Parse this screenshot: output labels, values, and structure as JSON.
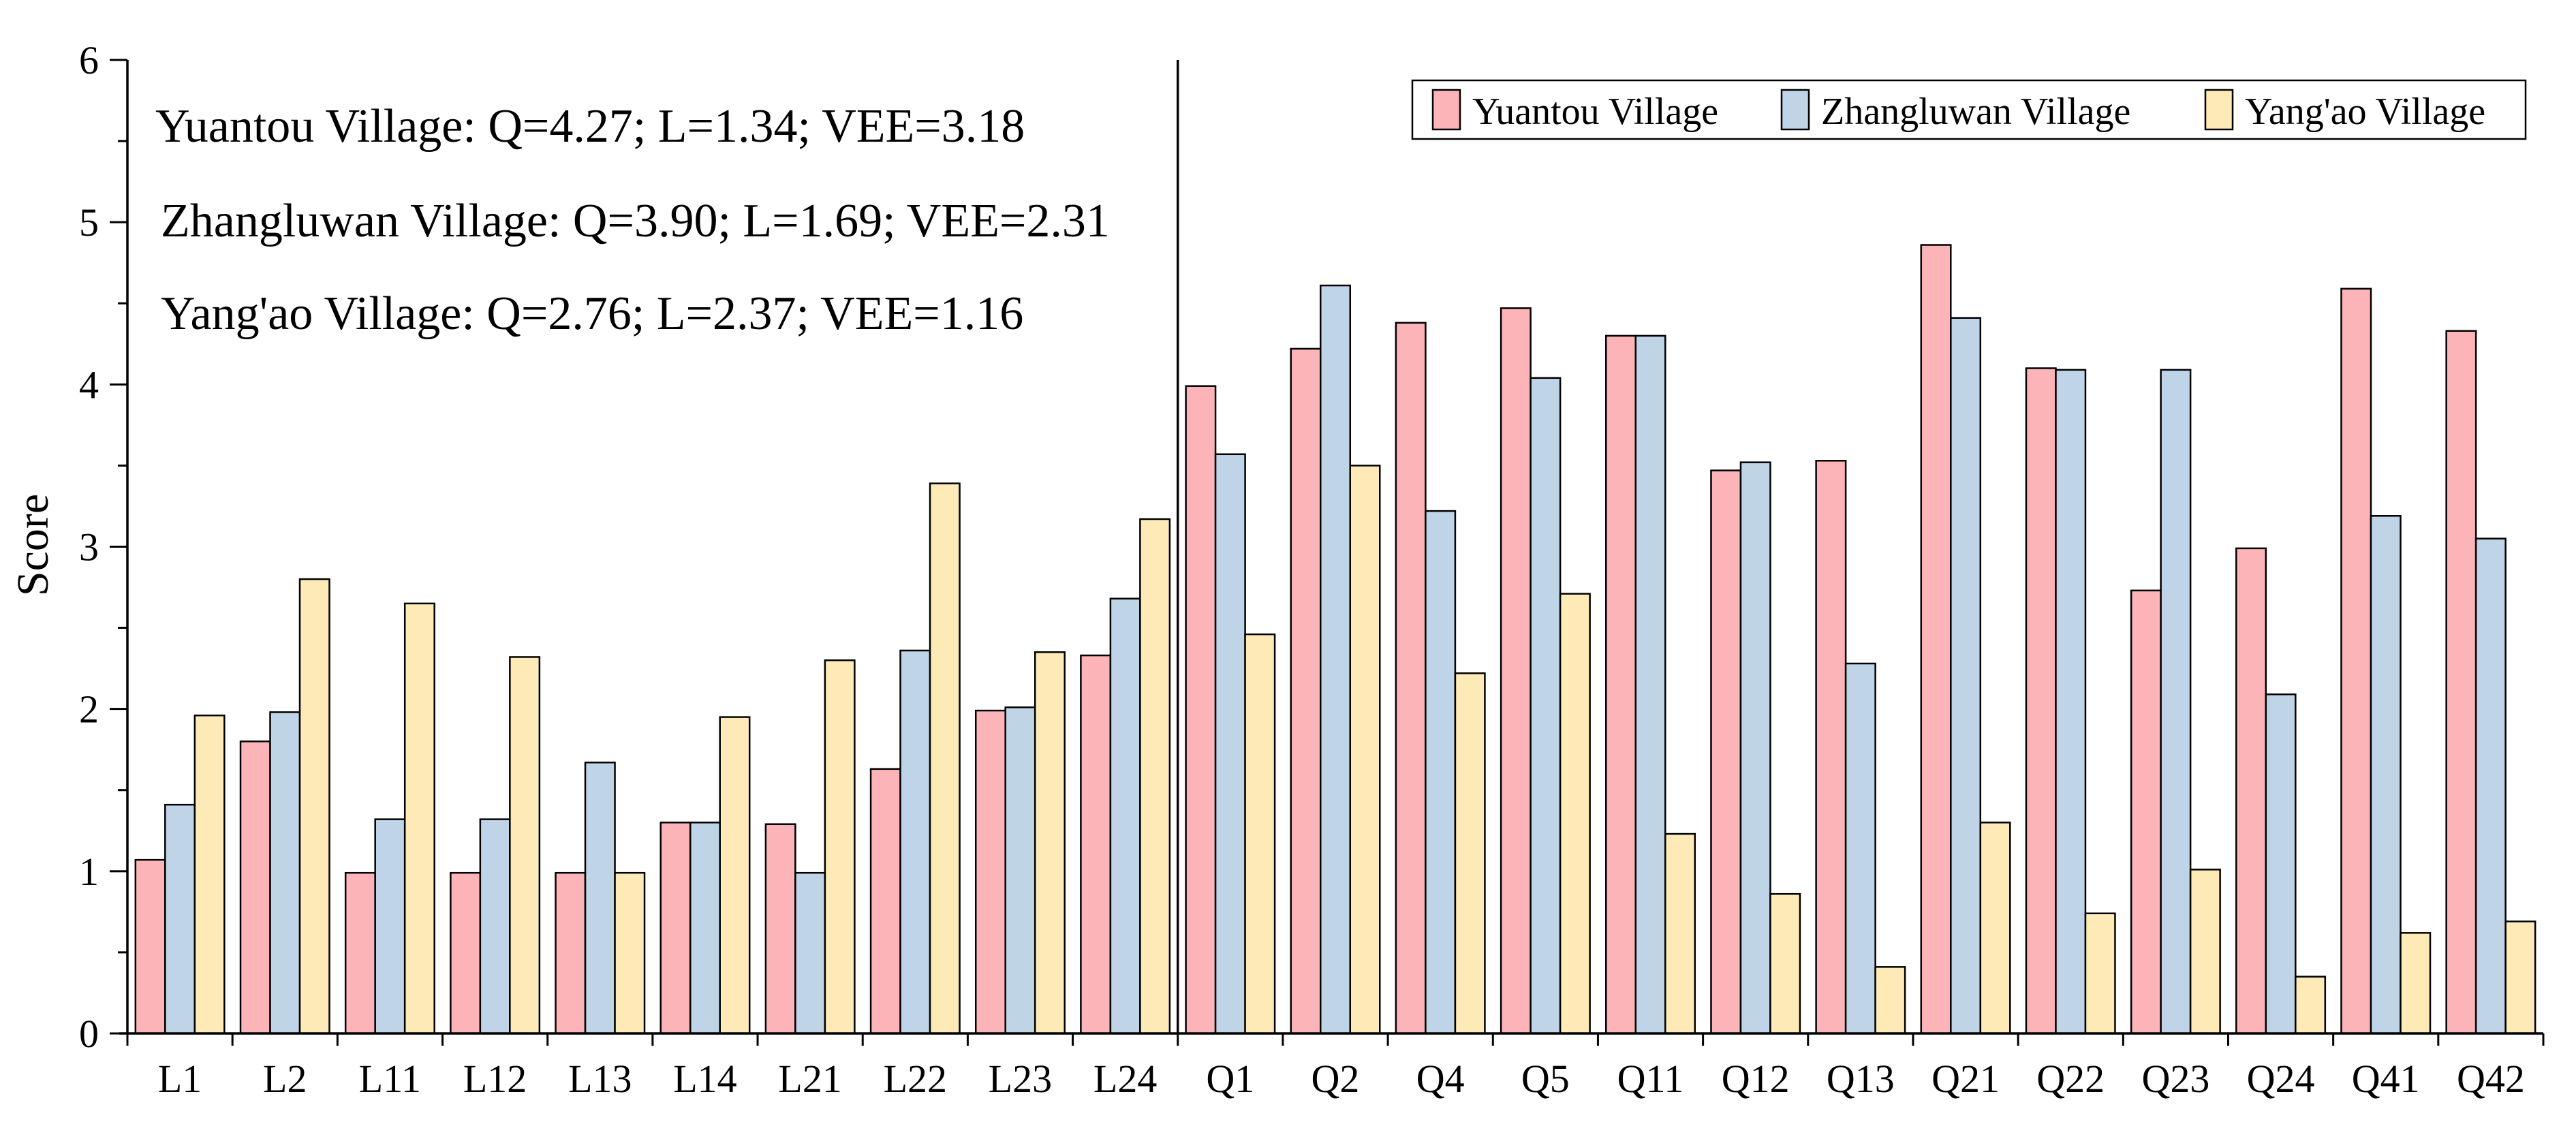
{
  "chart_data": {
    "type": "bar",
    "ylabel": "Score",
    "xlabel": "",
    "ylim": [
      0,
      6
    ],
    "yticks": [
      0,
      1,
      2,
      3,
      4,
      5,
      6
    ],
    "categories": [
      "L1",
      "L2",
      "L11",
      "L12",
      "L13",
      "L14",
      "L21",
      "L22",
      "L23",
      "L24",
      "Q1",
      "Q2",
      "Q4",
      "Q5",
      "Q11",
      "Q12",
      "Q13",
      "Q21",
      "Q22",
      "Q23",
      "Q24",
      "Q41",
      "Q42"
    ],
    "series": [
      {
        "name": "Yuantou Village",
        "color": "#fcb4b8",
        "values": [
          1.07,
          1.8,
          0.99,
          0.99,
          0.99,
          1.3,
          1.29,
          1.63,
          1.99,
          2.33,
          3.99,
          4.22,
          4.38,
          4.47,
          4.3,
          3.47,
          3.53,
          4.86,
          4.1,
          2.73,
          2.99,
          4.59,
          4.33
        ]
      },
      {
        "name": "Zhangluwan Village",
        "color": "#c0d4e8",
        "values": [
          1.41,
          1.98,
          1.32,
          1.32,
          1.67,
          1.3,
          0.99,
          2.36,
          2.01,
          2.68,
          3.57,
          4.61,
          3.22,
          4.04,
          4.3,
          3.52,
          2.28,
          4.41,
          4.09,
          4.09,
          2.09,
          3.19,
          3.05
        ]
      },
      {
        "name": "Yang'ao Village",
        "color": "#fdeab6",
        "values": [
          1.96,
          2.8,
          2.65,
          2.32,
          0.99,
          1.95,
          2.3,
          3.39,
          2.35,
          3.17,
          2.46,
          3.5,
          2.22,
          2.71,
          1.23,
          0.86,
          0.41,
          1.3,
          0.74,
          1.01,
          0.35,
          0.62,
          0.69
        ]
      }
    ],
    "legend_position": "top-right",
    "annotations": [
      "Yuantou Village: Q=4.27; L=1.34; VEE=3.18",
      "Zhangluwan Village: Q=3.90; L=1.69; VEE=2.31",
      "Yang'ao Village: Q=2.76; L=2.37; VEE=1.16"
    ],
    "divider_after_category": "L24"
  }
}
